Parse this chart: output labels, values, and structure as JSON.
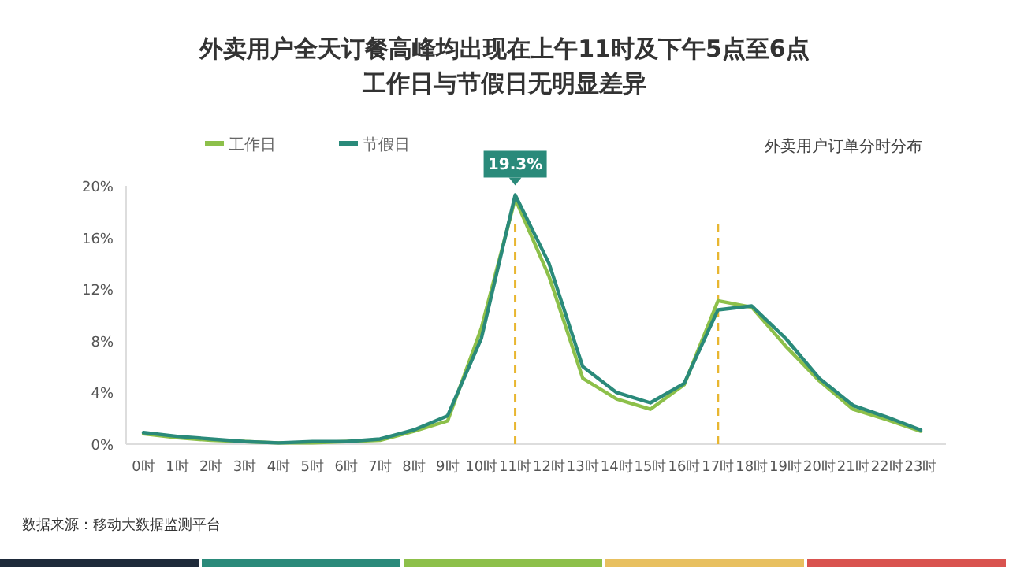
{
  "chart_data": {
    "type": "line",
    "title": "外卖用户全天订餐高峰均出现在上午11时及下午5点至6点工作日与节假日无明显差异",
    "subtitle": "外卖用户订单分时分布",
    "categories": [
      "0时",
      "1时",
      "2时",
      "3时",
      "4时",
      "5时",
      "6时",
      "7时",
      "8时",
      "9时",
      "10时",
      "11时",
      "12时",
      "13时",
      "14时",
      "15时",
      "16时",
      "17时",
      "18时",
      "19时",
      "20时",
      "21时",
      "22时",
      "23时"
    ],
    "series": [
      {
        "name": "工作日",
        "color": "#8dc04a",
        "values": [
          0.8,
          0.5,
          0.3,
          0.2,
          0.1,
          0.1,
          0.2,
          0.3,
          1.0,
          1.8,
          9.0,
          19.0,
          13.0,
          5.1,
          3.5,
          2.7,
          4.6,
          11.1,
          10.6,
          7.6,
          4.9,
          2.7,
          1.9,
          1.0
        ]
      },
      {
        "name": "节假日",
        "color": "#2a8a7a",
        "values": [
          0.9,
          0.6,
          0.4,
          0.2,
          0.1,
          0.2,
          0.2,
          0.4,
          1.1,
          2.2,
          8.2,
          19.3,
          14.0,
          6.0,
          4.0,
          3.2,
          4.7,
          10.4,
          10.7,
          8.2,
          5.1,
          3.0,
          2.1,
          1.1
        ]
      }
    ],
    "ylim": [
      0,
      20
    ],
    "yticks": [
      {
        "value": 0,
        "label": "0%"
      },
      {
        "value": 4,
        "label": "4%"
      },
      {
        "value": 8,
        "label": "8%"
      },
      {
        "value": 12,
        "label": "12%"
      },
      {
        "value": 16,
        "label": "16%"
      },
      {
        "value": 20,
        "label": "20%"
      }
    ],
    "ref_lines": [
      {
        "axis": "x",
        "value": "11时",
        "color": "#e8b630",
        "line_style": "dashed"
      },
      {
        "axis": "x",
        "value": "17时",
        "color": "#e8b630",
        "line_style": "dashed"
      }
    ],
    "annotations": [
      {
        "text": "19.3%",
        "x": "11时",
        "y": 19.3
      },
      "数据来源：移动大数据监测平台"
    ],
    "legend": "top left"
  }
}
